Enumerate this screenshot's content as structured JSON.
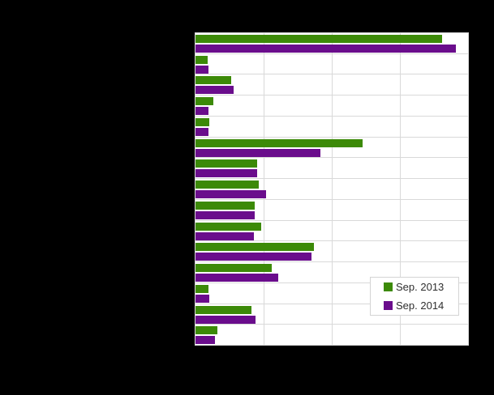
{
  "colors": {
    "page_background": "#000000",
    "plot_background": "#ffffff",
    "gridline": "#d9d9d9",
    "legend_border": "#d4d4d4",
    "legend_text": "#2e2e2e",
    "series_2013": "#3c8a08",
    "series_2014": "#6a0d8c"
  },
  "chart_data": {
    "type": "bar",
    "orientation": "horizontal",
    "title": "",
    "xlabel": "",
    "ylabel": "",
    "categories": [
      "",
      "",
      "",
      "",
      "",
      "",
      "",
      "",
      "",
      "",
      "",
      "",
      "",
      "",
      ""
    ],
    "category_count": 15,
    "value_scale": "percent of x-axis span (axis tick labels not visible in image)",
    "xlim": [
      0,
      100
    ],
    "gridline_percents": [
      25,
      50,
      75,
      100
    ],
    "grid": "vertical gridlines and horizontal row separators",
    "series": [
      {
        "name": "Sep. 2013",
        "color": "#3c8a08",
        "values": [
          90.5,
          4.5,
          13.1,
          6.5,
          5.1,
          61.3,
          22.6,
          23.2,
          21.7,
          24.1,
          43.5,
          28.0,
          4.8,
          20.5,
          8.0
        ]
      },
      {
        "name": "Sep. 2014",
        "color": "#6a0d8c",
        "values": [
          95.5,
          4.8,
          14.0,
          4.8,
          4.8,
          45.8,
          22.6,
          25.9,
          21.7,
          21.4,
          42.6,
          30.4,
          5.1,
          21.9,
          7.1
        ]
      }
    ],
    "legend": {
      "position": "bottom-right",
      "entries": [
        {
          "label": "Sep. 2013",
          "color": "#3c8a08"
        },
        {
          "label": "Sep. 2014",
          "color": "#6a0d8c"
        }
      ]
    }
  }
}
